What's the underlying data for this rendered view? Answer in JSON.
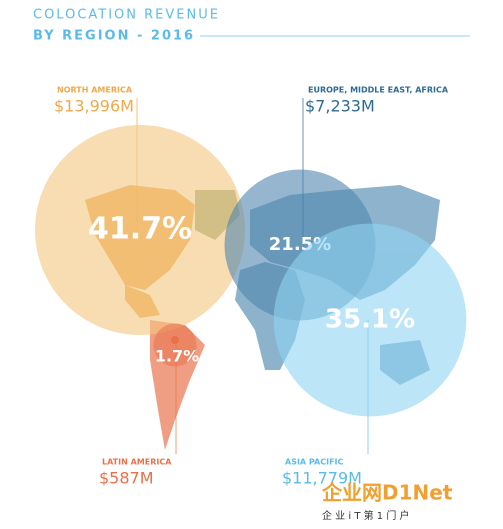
{
  "chart_data": {
    "type": "bubble",
    "title": "COLOCATION REVENUE",
    "subtitle": "BY REGION - 2016",
    "categories": [
      "NORTH AMERICA",
      "EUROPE, MIDDLE EAST, AFRICA",
      "LATIN AMERICA",
      "ASIA PACIFIC"
    ],
    "values": [
      13996,
      7233,
      587,
      11779
    ],
    "value_labels": [
      "$13,996M",
      "$7,233M",
      "$587M",
      "$11,779M"
    ],
    "shares": [
      41.7,
      21.5,
      1.7,
      35.1
    ],
    "share_labels": [
      "41.7%",
      "21.5%",
      "1.7%",
      "35.1%"
    ],
    "colors": [
      "#f5c77e",
      "#4f86ad",
      "#e8714a",
      "#8fd3f4"
    ],
    "label_colors": [
      "#efa94a",
      "#2f6a93",
      "#e8714a",
      "#5cbbe6"
    ],
    "watermark": "企业网D1Net",
    "watermark_subtitle": "企 业 i T 第 1 门 户"
  }
}
